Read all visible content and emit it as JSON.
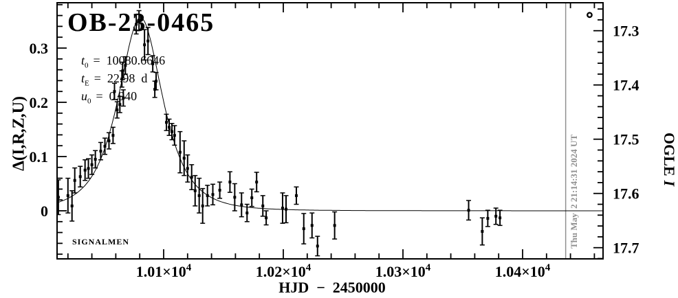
{
  "title": "OB-23-0465",
  "params": [
    {
      "sym": "t",
      "sub": "0",
      "value": "=  10080.6646"
    },
    {
      "sym": "t",
      "sub": "E",
      "value": "=  22.98  d"
    },
    {
      "sym": "u",
      "sub": "0",
      "value": "=  0.940"
    }
  ],
  "watermark": "SIGNALMEN",
  "timestamp_label": "Thu May  2 21:14:31 2024 UT",
  "colors": {
    "foreground": "#000000",
    "background": "#ffffff",
    "muted": "#8f8f8f"
  },
  "axes": {
    "x": {
      "label": "HJD  −  2450000",
      "min": 10011,
      "max": 10467,
      "major": [
        10100,
        10200,
        10300,
        10400
      ],
      "major_labels": [
        {
          "mantissa": "1.01",
          "base": "×10",
          "exp": "4"
        },
        {
          "mantissa": "1.02",
          "base": "×10",
          "exp": "4"
        },
        {
          "mantissa": "1.03",
          "base": "×10",
          "exp": "4"
        },
        {
          "mantissa": "1.04",
          "base": "×10",
          "exp": "4"
        }
      ],
      "minor_step": 20
    },
    "y_left": {
      "label": "Δ(I,R,Z,U)",
      "min": -0.089,
      "max": 0.387,
      "major": [
        0,
        0.1,
        0.2,
        0.3
      ],
      "labels": [
        "0",
        "0.1",
        "0.2",
        "0.3"
      ],
      "minor_step": 0.02
    },
    "y_right": {
      "label_roman": "OGLE",
      "label_italic": "I",
      "baseline_mag": 17.632,
      "major": [
        17.3,
        17.4,
        17.5,
        17.6,
        17.7
      ],
      "labels": [
        "17.3",
        "17.4",
        "17.5",
        "17.6",
        "17.7"
      ],
      "minor_step": 0.02
    }
  },
  "chart_data": {
    "type": "scatter",
    "title": "OB-23-0465",
    "xlabel": "HJD − 2450000",
    "ylabel_left": "Δ(I,R,Z,U)",
    "ylabel_right": "OGLE I",
    "xlim": [
      10011,
      10467
    ],
    "ylim_delta": [
      -0.089,
      0.387
    ],
    "legend_position": "none",
    "grid": false,
    "model": {
      "kind": "pspl-lightcurve",
      "t0": 10080.6646,
      "tE": 22.98,
      "u0": 0.94
    },
    "points": [
      [
        10012.0,
        0.025,
        0.032
      ],
      [
        10020.0,
        0.028,
        0.032
      ],
      [
        10023.4,
        0.009,
        0.028
      ],
      [
        10025.7,
        0.056,
        0.023
      ],
      [
        10030.3,
        0.063,
        0.019
      ],
      [
        10034.3,
        0.075,
        0.019
      ],
      [
        10037.1,
        0.078,
        0.018
      ],
      [
        10040.0,
        0.085,
        0.018
      ],
      [
        10042.9,
        0.095,
        0.016
      ],
      [
        10047.4,
        0.11,
        0.016
      ],
      [
        10050.9,
        0.119,
        0.015
      ],
      [
        10054.3,
        0.129,
        0.015
      ],
      [
        10057.7,
        0.139,
        0.015
      ],
      [
        10061.1,
        0.186,
        0.015
      ],
      [
        10063.4,
        0.196,
        0.015
      ],
      [
        10066.3,
        0.208,
        0.015
      ],
      [
        10058.9,
        0.22,
        0.015
      ],
      [
        10065.1,
        0.243,
        0.015
      ],
      [
        10065.7,
        0.258,
        0.016
      ],
      [
        10068.0,
        0.268,
        0.016
      ],
      [
        10077.1,
        0.344,
        0.018
      ],
      [
        10079.4,
        0.351,
        0.018
      ],
      [
        10084.0,
        0.306,
        0.028
      ],
      [
        10086.9,
        0.313,
        0.025
      ],
      [
        10090.9,
        0.271,
        0.015
      ],
      [
        10093.7,
        0.239,
        0.016
      ],
      [
        10092.6,
        0.224,
        0.015
      ],
      [
        10102.3,
        0.163,
        0.015
      ],
      [
        10104.6,
        0.154,
        0.015
      ],
      [
        10106.9,
        0.146,
        0.015
      ],
      [
        10109.1,
        0.139,
        0.018
      ],
      [
        10113.7,
        0.108,
        0.038
      ],
      [
        10117.1,
        0.097,
        0.032
      ],
      [
        10120.0,
        0.078,
        0.025
      ],
      [
        10123.4,
        0.062,
        0.023
      ],
      [
        10126.3,
        0.037,
        0.028
      ],
      [
        10129.7,
        0.028,
        0.032
      ],
      [
        10132.6,
        0.009,
        0.032
      ],
      [
        10136.6,
        0.028,
        0.019
      ],
      [
        10141.1,
        0.03,
        0.019
      ],
      [
        10146.9,
        0.038,
        0.015
      ],
      [
        10155.4,
        0.053,
        0.019
      ],
      [
        10159.4,
        0.025,
        0.025
      ],
      [
        10165.1,
        0.011,
        0.022
      ],
      [
        10169.7,
        -0.004,
        0.016
      ],
      [
        10173.7,
        0.024,
        0.016
      ],
      [
        10177.7,
        0.053,
        0.018
      ],
      [
        10182.9,
        0.009,
        0.019
      ],
      [
        10185.7,
        -0.013,
        0.013
      ],
      [
        10199.4,
        0.005,
        0.028
      ],
      [
        10202.3,
        0.003,
        0.025
      ],
      [
        10210.9,
        0.028,
        0.016
      ],
      [
        10217.1,
        -0.033,
        0.028
      ],
      [
        10224.0,
        -0.027,
        0.023
      ],
      [
        10228.6,
        -0.065,
        0.018
      ],
      [
        10242.9,
        -0.027,
        0.025
      ],
      [
        10354.9,
        0.001,
        0.018
      ],
      [
        10366.3,
        -0.038,
        0.025
      ],
      [
        10370.9,
        -0.014,
        0.015
      ],
      [
        10377.7,
        -0.01,
        0.015
      ],
      [
        10381.1,
        -0.013,
        0.014
      ]
    ],
    "special_point": {
      "x": 10456,
      "delta": 0.361,
      "marker": "open-circle"
    },
    "vline": {
      "x": 10436,
      "label": "Thu May  2 21:14:31 2024 UT"
    }
  }
}
